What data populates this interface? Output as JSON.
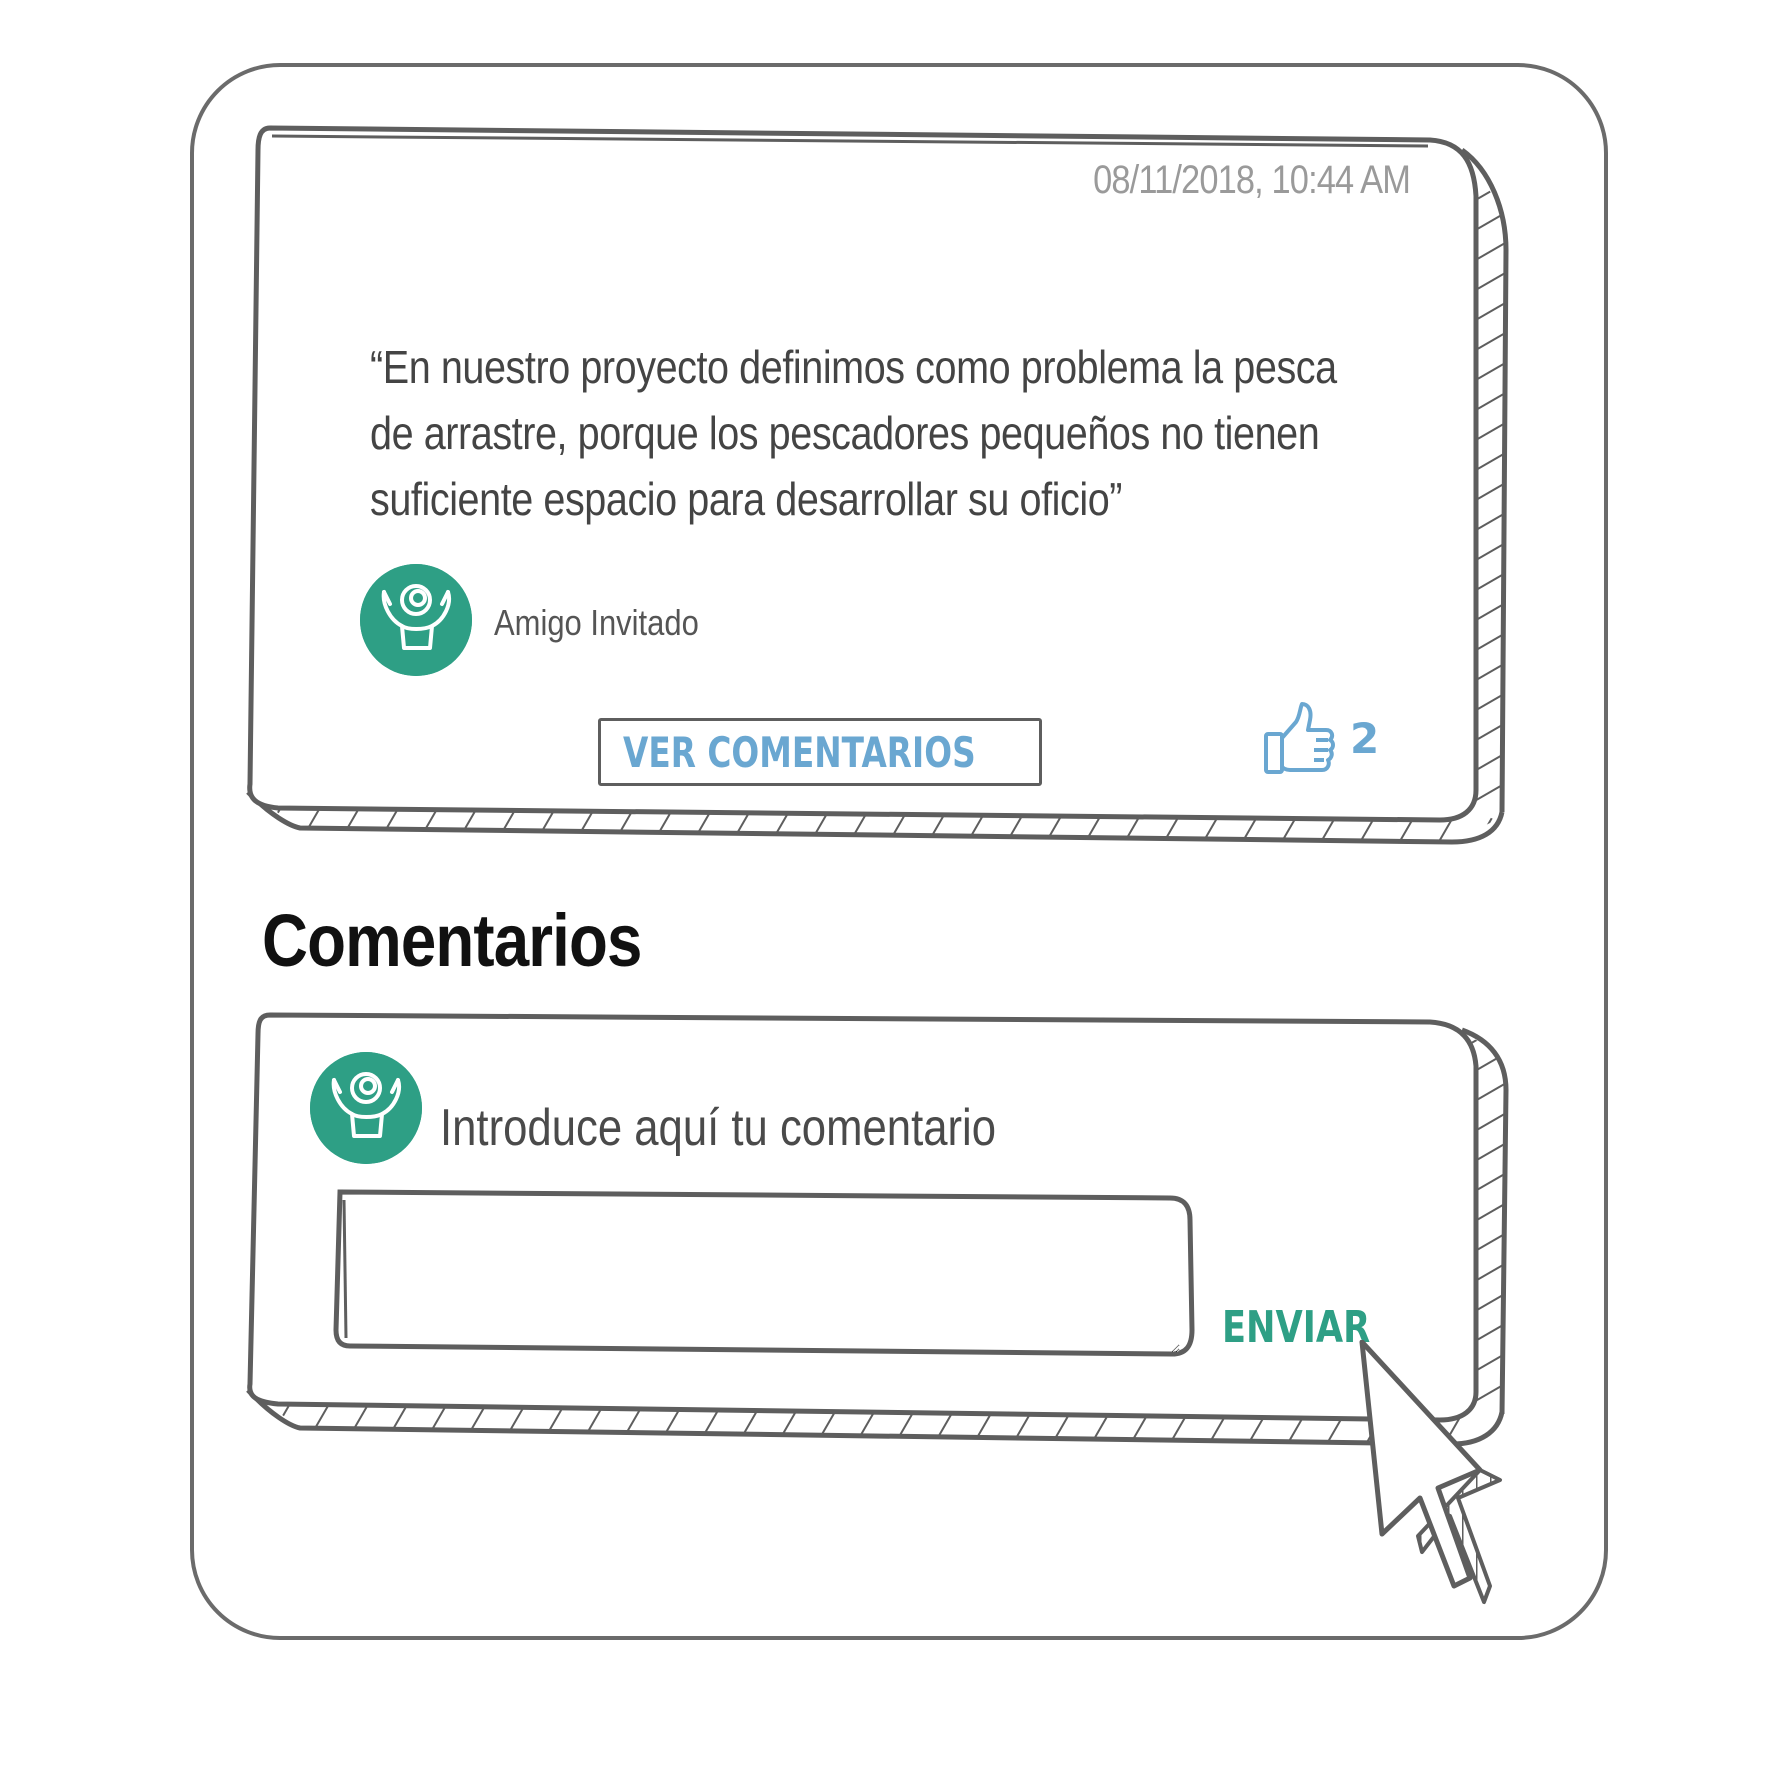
{
  "post": {
    "timestamp": "08/11/2018, 10:44 AM",
    "quote": "“En nuestro proyecto definimos como problema la pesca de arrastre, porque los pescadores pequeños no tienen suficiente espacio para desarrollar su oficio”",
    "author": "Amigo Invitado",
    "view_comments_label": "VER COMENTARIOS",
    "likes": "2"
  },
  "comments": {
    "title": "Comentarios",
    "prompt": "Introduce aquí tu comentario",
    "input_value": "",
    "send_label": "ENVIAR"
  },
  "colors": {
    "accent_green": "#2e9f85",
    "accent_blue": "#6aa7d1",
    "ink": "#5e5e5e"
  },
  "icons": [
    "avatar-cheering-person-icon",
    "speech-bubble-icon",
    "thumbs-up-icon",
    "mouse-cursor-icon"
  ]
}
